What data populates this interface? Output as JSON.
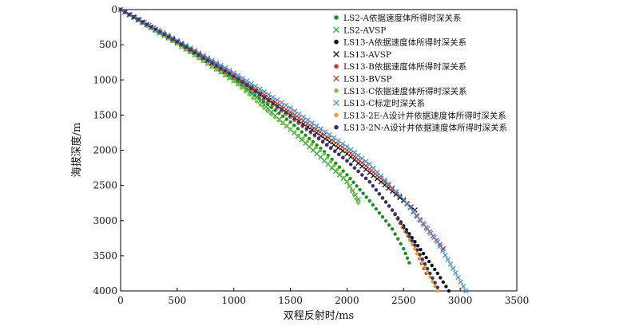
{
  "chart_data": {
    "type": "scatter",
    "title": "",
    "xlabel": "双程反射时/ms",
    "ylabel": "海拔深度/m",
    "xlim": [
      0,
      3500
    ],
    "ylim": [
      0,
      4000
    ],
    "y_inverted": true,
    "x_ticks": [
      0,
      500,
      1000,
      1500,
      2000,
      2500,
      3000,
      3500
    ],
    "y_ticks": [
      0,
      500,
      1000,
      1500,
      2000,
      2500,
      3000,
      3500,
      4000
    ],
    "grid": false,
    "legend_position": "top-right",
    "series": [
      {
        "name": "LS2-A依据速度体所得时深关系",
        "marker": "circle",
        "color": "#1e8c2a",
        "x": [
          0,
          500,
          1000,
          1300,
          1500,
          1800,
          2000,
          2200,
          2400,
          2500,
          2550
        ],
        "y": [
          0,
          470,
          1000,
          1350,
          1600,
          2020,
          2350,
          2720,
          3120,
          3400,
          3600
        ]
      },
      {
        "name": "LS2-AVSP",
        "marker": "x",
        "color": "#2ea043",
        "x": [
          0,
          500,
          1000,
          1200,
          1400,
          1600,
          1800,
          2000,
          2100
        ],
        "y": [
          0,
          480,
          1010,
          1250,
          1560,
          1850,
          2150,
          2450,
          2700
        ]
      },
      {
        "name": "LS13-A依据速度体所得时深关系",
        "marker": "circle",
        "color": "#111111",
        "x": [
          0,
          500,
          1000,
          1500,
          2000,
          2200,
          2400,
          2600,
          2800,
          2900
        ],
        "y": [
          0,
          460,
          960,
          1520,
          2150,
          2450,
          2850,
          3300,
          3750,
          4000
        ]
      },
      {
        "name": "LS13-AVSP",
        "marker": "x",
        "color": "#111111",
        "x": [
          0,
          500,
          1000,
          1500,
          2000,
          2300,
          2600
        ],
        "y": [
          0,
          460,
          950,
          1500,
          2050,
          2450,
          2850
        ]
      },
      {
        "name": "LS13-B依据速度体所得时深关系",
        "marker": "circle",
        "color": "#c0392b",
        "x": [
          0,
          500,
          1000,
          1500,
          2000,
          2200,
          2400,
          2600,
          2700
        ],
        "y": [
          0,
          460,
          960,
          1530,
          2150,
          2450,
          2850,
          3400,
          3750
        ]
      },
      {
        "name": "LS13-BVSP",
        "marker": "x",
        "color": "#c0392b",
        "x": [
          0,
          500,
          1000,
          1500,
          1800,
          2000,
          2300,
          2500,
          2700,
          2850
        ],
        "y": [
          0,
          450,
          930,
          1460,
          1780,
          2000,
          2400,
          2700,
          3100,
          3400
        ]
      },
      {
        "name": "LS13-C依据速度体所得时深关系",
        "marker": "circle",
        "color": "#7cc242",
        "x": [
          0,
          500,
          1000,
          1300,
          1500,
          1800,
          2000,
          2100
        ],
        "y": [
          0,
          490,
          1020,
          1450,
          1700,
          2050,
          2450,
          2750
        ]
      },
      {
        "name": "LS13-C标定时深关系",
        "marker": "x",
        "color": "#4a90c8",
        "x": [
          0,
          500,
          1000,
          1500,
          2000,
          2200,
          2500,
          2800,
          3050
        ],
        "y": [
          0,
          440,
          900,
          1400,
          1950,
          2200,
          2700,
          3300,
          4000
        ]
      },
      {
        "name": "LS13-2E-A设计井依据速度体所得时深关系",
        "marker": "circle",
        "color": "#e8a32e",
        "x": [
          0,
          500,
          1000,
          1500,
          2000,
          2200,
          2400,
          2600,
          2800
        ],
        "y": [
          0,
          460,
          960,
          1520,
          2150,
          2450,
          2850,
          3400,
          4000
        ]
      },
      {
        "name": "LS13-2N-A设计井依据速度体所得时深关系",
        "marker": "circle",
        "color": "#3b3170",
        "x": [
          0,
          500,
          1000,
          1500,
          2000,
          2200,
          2400,
          2600,
          2800
        ],
        "y": [
          0,
          460,
          950,
          1510,
          2150,
          2450,
          2850,
          3350,
          3950
        ]
      }
    ]
  }
}
